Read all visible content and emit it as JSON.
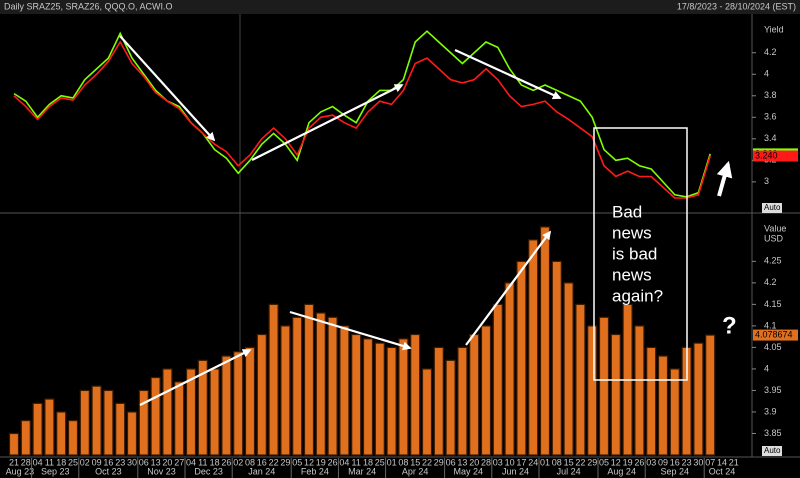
{
  "header": {
    "title": "Daily SRAZ25, SRAZ26, QQQ.O, ACWI.O",
    "date_range": "17/8/2023 - 28/10/2024 (EST)"
  },
  "annotations": {
    "box_lines": [
      "Bad",
      "news",
      "is bad",
      "news",
      "again?"
    ],
    "question": "?"
  },
  "chart_data": [
    {
      "type": "line",
      "y_label": "Yield",
      "scale_button": "Auto",
      "ylim": [
        2.72,
        4.56
      ],
      "yticks": [
        3,
        3.2,
        3.4,
        3.6,
        3.8,
        4,
        4.2
      ],
      "series": [
        {
          "color": "#80ff00",
          "last_value_label": "3.260",
          "values": [
            3.82,
            3.75,
            3.6,
            3.72,
            3.8,
            3.78,
            3.95,
            4.05,
            4.15,
            4.38,
            4.15,
            4.0,
            3.85,
            3.75,
            3.7,
            3.55,
            3.45,
            3.3,
            3.22,
            3.08,
            3.2,
            3.35,
            3.45,
            3.35,
            3.2,
            3.55,
            3.65,
            3.7,
            3.62,
            3.55,
            3.75,
            3.85,
            3.85,
            3.95,
            4.3,
            4.4,
            4.3,
            4.2,
            4.1,
            4.2,
            4.3,
            4.25,
            4.05,
            3.9,
            3.85,
            3.9,
            3.85,
            3.8,
            3.75,
            3.6,
            3.3,
            3.2,
            3.22,
            3.15,
            3.12,
            3.0,
            2.88,
            2.86,
            2.9,
            3.26,
            null,
            null
          ]
        },
        {
          "color": "#ff1a1a",
          "last_value_label": "3.240",
          "values": [
            3.8,
            3.7,
            3.58,
            3.7,
            3.78,
            3.76,
            3.9,
            4.0,
            4.12,
            4.3,
            4.1,
            3.98,
            3.83,
            3.75,
            3.68,
            3.55,
            3.45,
            3.35,
            3.28,
            3.15,
            3.25,
            3.4,
            3.5,
            3.4,
            3.25,
            3.5,
            3.6,
            3.62,
            3.55,
            3.5,
            3.65,
            3.75,
            3.72,
            3.85,
            4.1,
            4.15,
            4.05,
            3.95,
            3.92,
            3.95,
            4.05,
            3.95,
            3.8,
            3.7,
            3.72,
            3.75,
            3.65,
            3.58,
            3.5,
            3.42,
            3.15,
            3.05,
            3.1,
            3.05,
            3.05,
            2.95,
            2.85,
            2.85,
            2.88,
            3.24,
            null,
            null
          ]
        }
      ]
    },
    {
      "type": "bar",
      "y_label": "Value",
      "y_unit": "USD",
      "scale_button": "Auto",
      "color": "#e0701e",
      "last_value_label": "4.078674",
      "ylim": [
        3.8,
        4.36
      ],
      "yticks": [
        3.85,
        3.9,
        3.95,
        4,
        4.05,
        4.1,
        4.15,
        4.2,
        4.25
      ],
      "categories": [
        "21",
        "28",
        "04",
        "11",
        "18",
        "25",
        "02",
        "09",
        "16",
        "23",
        "30",
        "06",
        "13",
        "20",
        "27",
        "04",
        "11",
        "18",
        "26",
        "02",
        "08",
        "16",
        "22",
        "29",
        "05",
        "12",
        "19",
        "26",
        "04",
        "11",
        "18",
        "25",
        "01",
        "08",
        "15",
        "22",
        "29",
        "06",
        "13",
        "20",
        "28",
        "03",
        "10",
        "17",
        "24",
        "01",
        "08",
        "15",
        "22",
        "29",
        "05",
        "12",
        "19",
        "26",
        "03",
        "09",
        "16",
        "23",
        "30",
        "07",
        "14",
        "21"
      ],
      "months": [
        "Aug 23",
        "Sep 23",
        "Oct 23",
        "Nov 23",
        "Dec 23",
        "Jan 24",
        "Feb 24",
        "Mar 24",
        "Apr 24",
        "May 24",
        "Jun 24",
        "Jul 24",
        "Aug 24",
        "Sep 24",
        "Oct 24"
      ],
      "values": [
        3.85,
        3.88,
        3.92,
        3.93,
        3.9,
        3.88,
        3.95,
        3.96,
        3.95,
        3.92,
        3.9,
        3.95,
        3.98,
        4.0,
        3.97,
        4.0,
        4.02,
        4.0,
        4.03,
        4.04,
        4.05,
        4.08,
        4.15,
        4.1,
        4.12,
        4.15,
        4.13,
        4.12,
        4.1,
        4.08,
        4.07,
        4.06,
        4.05,
        4.07,
        4.08,
        4.0,
        4.05,
        4.02,
        4.05,
        4.08,
        4.1,
        4.15,
        4.2,
        4.25,
        4.3,
        4.33,
        4.25,
        4.2,
        4.15,
        4.1,
        4.12,
        4.08,
        4.15,
        4.1,
        4.05,
        4.03,
        4.0,
        4.05,
        4.06,
        4.078674,
        null,
        null
      ]
    }
  ]
}
